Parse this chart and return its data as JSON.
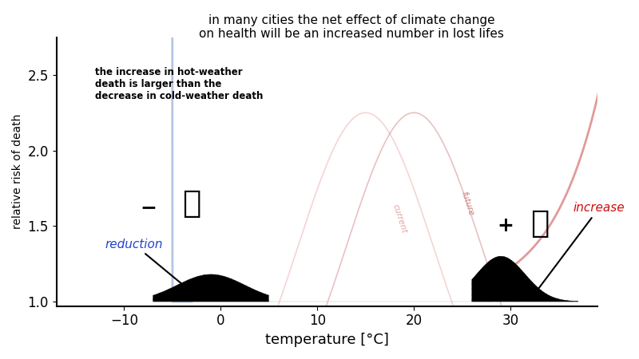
{
  "title": "in many cities the net effect of climate change\non health will be an increased number in lost lifes",
  "xlabel": "temperature [°C]",
  "ylabel": "relative risk of death",
  "annotation_text": "the increase in hot-weather\ndeath is larger than the\ndecrease in cold-weather death",
  "reduction_label": "reduction",
  "increase_label": "increase",
  "current_label": "current",
  "future_label": "future",
  "xlim": [
    -17,
    39
  ],
  "ylim": [
    0.97,
    2.75
  ],
  "yticks": [
    1.0,
    1.5,
    2.0,
    2.5
  ],
  "xticks": [
    -10,
    0,
    10,
    20,
    30
  ],
  "bg_color": "#ffffff",
  "cold_curve_color": "#aabbdd",
  "hot_curve_color": "#dd8888",
  "current_curve_color": "#e08888",
  "future_curve_color": "#cc7777",
  "hatch_color": "#111111",
  "reduction_color": "#2244cc",
  "increase_color": "#cc1111"
}
